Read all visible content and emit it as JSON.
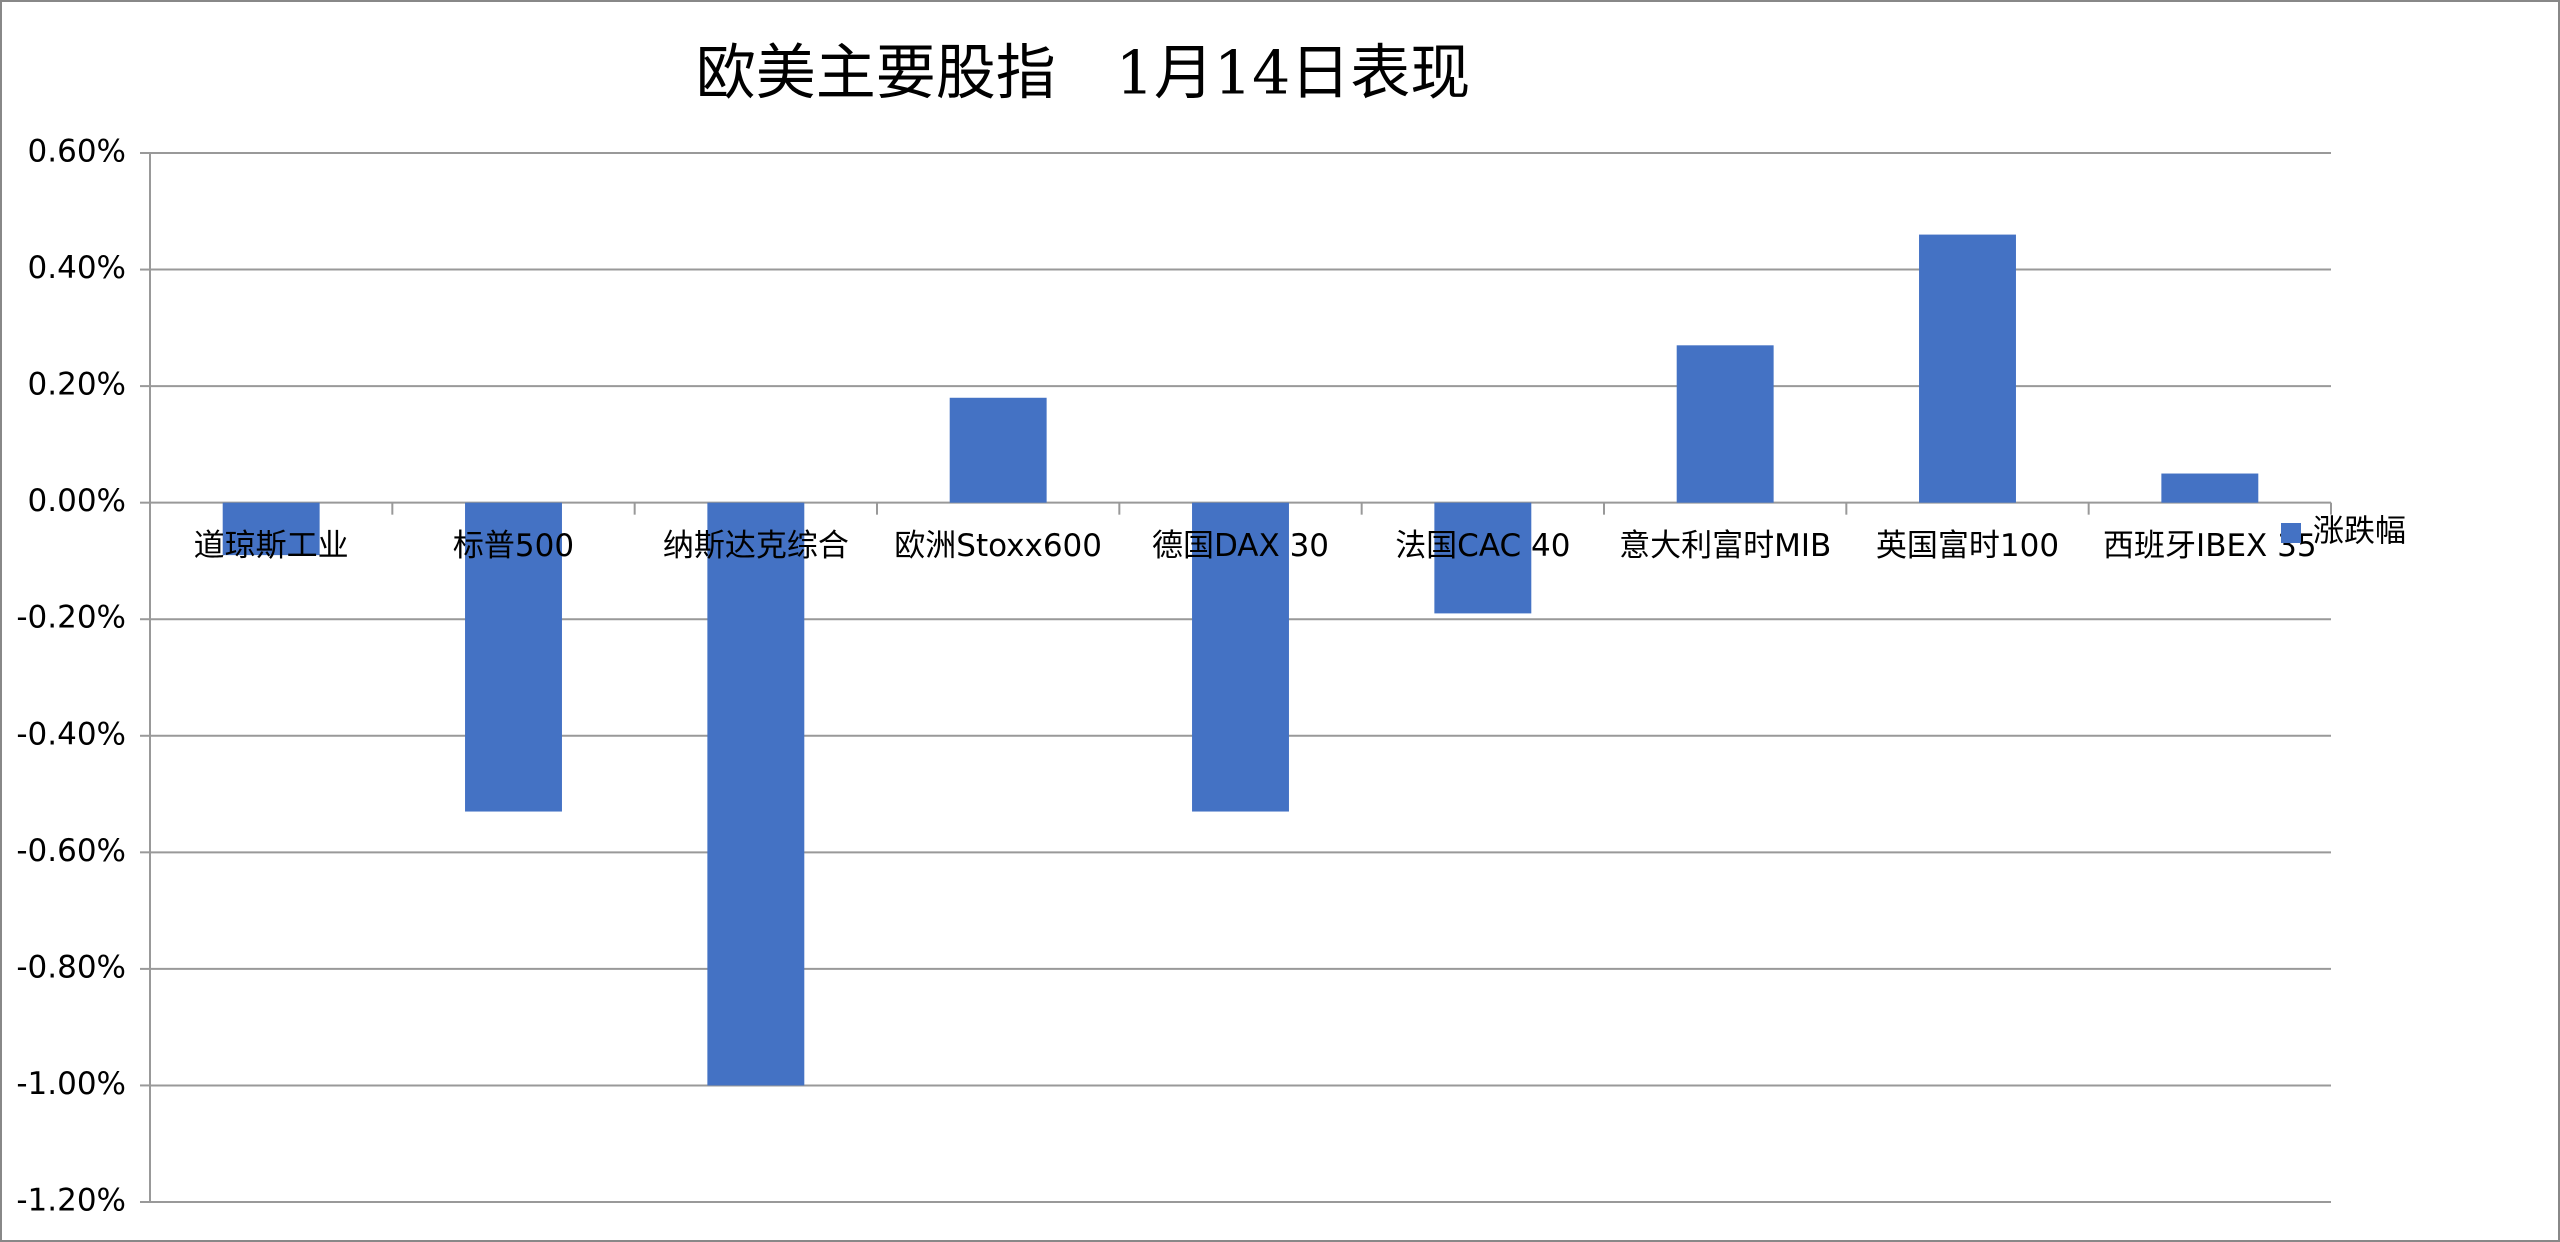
{
  "chart_data": {
    "type": "bar",
    "title": "欧美主要股指　1月14日表现",
    "categories": [
      "道琼斯工业",
      "标普500",
      "纳斯达克综合",
      "欧洲Stoxx600",
      "德国DAX 30",
      "法国CAC 40",
      "意大利富时MIB",
      "英国富时100",
      "西班牙IBEX 35"
    ],
    "series": [
      {
        "name": "涨跌幅",
        "color": "#4472c4",
        "values": [
          -0.09,
          -0.53,
          -1.0,
          0.18,
          -0.53,
          -0.19,
          0.27,
          0.46,
          0.05
        ]
      }
    ],
    "ylim": [
      -1.2,
      0.6
    ],
    "yticks": [
      {
        "value": -1.2,
        "label": "-1.20%"
      },
      {
        "value": -1.0,
        "label": "-1.00%"
      },
      {
        "value": -0.8,
        "label": "-0.80%"
      },
      {
        "value": -0.6,
        "label": "-0.60%"
      },
      {
        "value": -0.4,
        "label": "-0.40%"
      },
      {
        "value": -0.2,
        "label": "-0.20%"
      },
      {
        "value": 0,
        "label": "0.00%"
      },
      {
        "value": 0.2,
        "label": "0.20%"
      },
      {
        "value": 0.4,
        "label": "0.40%"
      },
      {
        "value": 0.6,
        "label": "0.60%"
      }
    ],
    "grid": true,
    "legend": "right"
  }
}
